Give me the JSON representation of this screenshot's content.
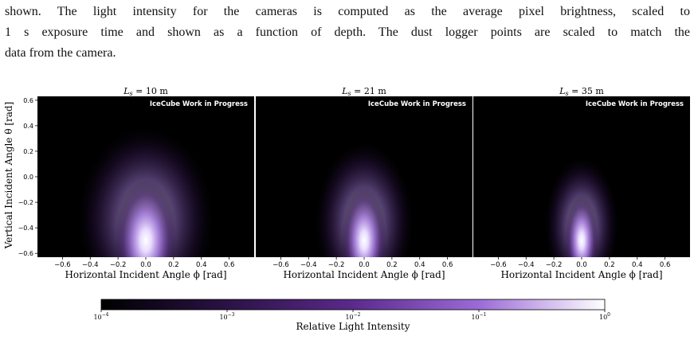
{
  "paragraph": {
    "lines": [
      "shown. The light intensity for the cameras is computed as the average pixel brightness, scaled to",
      "1 s exposure time and shown as a function of depth. The dust logger points are scaled to match the",
      "data from the camera."
    ]
  },
  "figure": {
    "panels": [
      {
        "title_prefix": "L",
        "title_sub": "s",
        "title_value": " = 10 m",
        "watermark": "IceCube Work in Progress",
        "spread_phi": 0.22,
        "spread_theta": 0.3
      },
      {
        "title_prefix": "L",
        "title_sub": "s",
        "title_value": " = 21 m",
        "watermark": "IceCube Work in Progress",
        "spread_phi": 0.16,
        "spread_theta": 0.26
      },
      {
        "title_prefix": "L",
        "title_sub": "s",
        "title_value": " = 35 m",
        "watermark": "IceCube Work in Progress",
        "spread_phi": 0.12,
        "spread_theta": 0.22
      }
    ],
    "xlabel": "Horizontal Incident Angle ϕ [rad]",
    "ylabel": "Vertical Incident Angle θ [rad]",
    "xticks": [
      "−0.6",
      "−0.4",
      "−0.2",
      "0.0",
      "0.2",
      "0.4",
      "0.6"
    ],
    "yticks": [
      "0.6",
      "0.4",
      "0.2",
      "0.0",
      "−0.2",
      "−0.4",
      "−0.6"
    ],
    "colorbar": {
      "label": "Relative Light Intensity",
      "ticks": [
        {
          "base": "10",
          "exp": "−4"
        },
        {
          "base": "10",
          "exp": "−3"
        },
        {
          "base": "10",
          "exp": "−2"
        },
        {
          "base": "10",
          "exp": "−1"
        },
        {
          "base": "10",
          "exp": "0"
        }
      ],
      "colors": [
        "#000000",
        "#2a1245",
        "#5b2a8c",
        "#9b6bd6",
        "#ffffff"
      ],
      "scale": "log"
    }
  },
  "chart_data": {
    "type": "heatmap",
    "xlabel": "Horizontal Incident Angle ϕ [rad]",
    "ylabel": "Vertical Incident Angle θ [rad]",
    "xlim": [
      -0.78,
      0.78
    ],
    "ylim": [
      -0.63,
      0.63
    ],
    "x_ticks": [
      -0.6,
      -0.4,
      -0.2,
      0.0,
      0.2,
      0.4,
      0.6
    ],
    "y_ticks": [
      -0.6,
      -0.4,
      -0.2,
      0.0,
      0.2,
      0.4,
      0.6
    ],
    "color_scale": {
      "type": "log",
      "range": [
        0.0001,
        1
      ]
    },
    "panel_titles": [
      "L_s = 10 m",
      "L_s = 21 m",
      "L_s = 35 m"
    ],
    "peak": {
      "phi": 0.0,
      "theta": -0.5
    }
  }
}
